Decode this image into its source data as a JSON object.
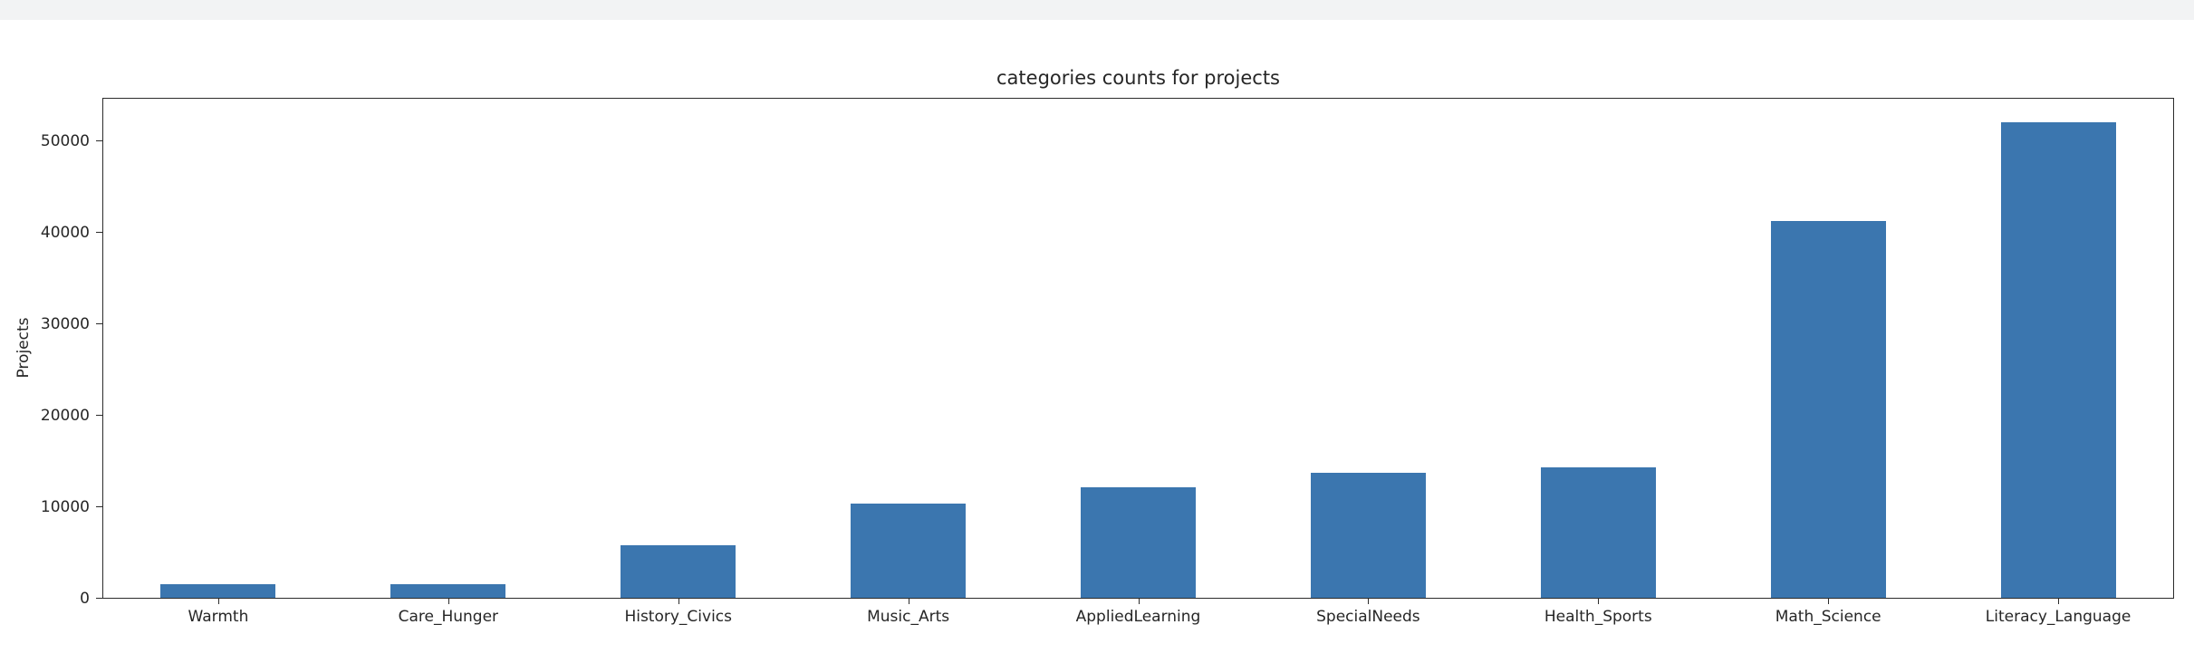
{
  "page": {
    "top_strip_color": "#f2f3f4",
    "background_color": "#ffffff"
  },
  "chart_data": {
    "type": "bar",
    "title": "categories counts for projects",
    "xlabel": "",
    "ylabel": "Projects",
    "categories": [
      "Warmth",
      "Care_Hunger",
      "History_Civics",
      "Music_Arts",
      "AppliedLearning",
      "SpecialNeeds",
      "Health_Sports",
      "Math_Science",
      "Literacy_Language"
    ],
    "values": [
      1500,
      1500,
      5800,
      10300,
      12100,
      13700,
      14300,
      41400,
      52200
    ],
    "yticks": [
      0,
      10000,
      20000,
      30000,
      40000,
      50000
    ],
    "ylim": [
      0,
      54800
    ],
    "bar_color": "#3b76af",
    "spine_color": "#2b2b2b",
    "grid": false,
    "legend": false,
    "legend_position": "none"
  }
}
